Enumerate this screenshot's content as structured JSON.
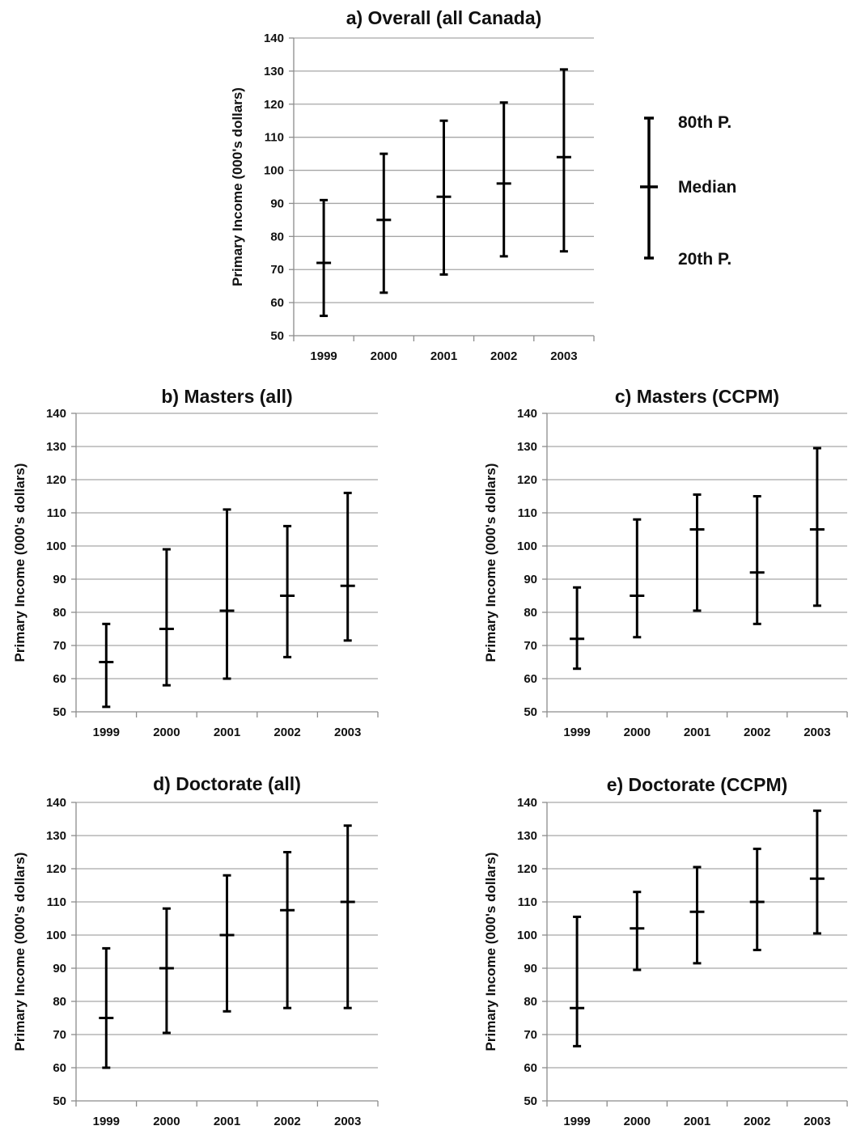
{
  "chart_data": [
    {
      "type": "error-bar",
      "title": "a) Overall (all Canada)",
      "ylabel": "Primary Income (000's dollars)",
      "ylim": [
        50,
        140
      ],
      "yticks": [
        "50",
        "60",
        "70",
        "80",
        "90",
        "100",
        "110",
        "120",
        "130",
        "140"
      ],
      "categories": [
        "1999",
        "2000",
        "2001",
        "2002",
        "2003"
      ],
      "p20": [
        56,
        63,
        68.5,
        74,
        75.5
      ],
      "median": [
        72,
        85,
        92,
        96,
        104
      ],
      "p80": [
        91,
        105,
        115,
        120.5,
        130.5
      ],
      "grid": true
    },
    {
      "type": "error-bar",
      "title": "b) Masters (all)",
      "ylabel": "Primary Income (000's dollars)",
      "ylim": [
        50,
        140
      ],
      "yticks": [
        "50",
        "60",
        "70",
        "80",
        "90",
        "100",
        "110",
        "120",
        "130",
        "140"
      ],
      "categories": [
        "1999",
        "2000",
        "2001",
        "2002",
        "2003"
      ],
      "p20": [
        51.5,
        58,
        60,
        66.5,
        71.5
      ],
      "median": [
        65,
        75,
        80.5,
        85,
        88
      ],
      "p80": [
        76.5,
        99,
        111,
        106,
        116
      ],
      "grid": true
    },
    {
      "type": "error-bar",
      "title": "c) Masters (CCPM)",
      "ylabel": "Primary Income (000's dollars)",
      "ylim": [
        50,
        140
      ],
      "yticks": [
        "50",
        "60",
        "70",
        "80",
        "90",
        "100",
        "110",
        "120",
        "130",
        "140"
      ],
      "categories": [
        "1999",
        "2000",
        "2001",
        "2002",
        "2003"
      ],
      "p20": [
        63,
        72.5,
        80.5,
        76.5,
        82
      ],
      "median": [
        72,
        85,
        105,
        92,
        105
      ],
      "p80": [
        87.5,
        108,
        115.5,
        115,
        129.5
      ],
      "grid": true
    },
    {
      "type": "error-bar",
      "title": "d) Doctorate (all)",
      "ylabel": "Primary Income (000's dollars)",
      "ylim": [
        50,
        140
      ],
      "yticks": [
        "50",
        "60",
        "70",
        "80",
        "90",
        "100",
        "110",
        "120",
        "130",
        "140"
      ],
      "categories": [
        "1999",
        "2000",
        "2001",
        "2002",
        "2003"
      ],
      "p20": [
        60,
        70.5,
        77,
        78,
        78
      ],
      "median": [
        75,
        90,
        100,
        107.5,
        110
      ],
      "p80": [
        96,
        108,
        118,
        125,
        133
      ],
      "grid": true
    },
    {
      "type": "error-bar",
      "title": "e) Doctorate (CCPM)",
      "ylabel": "Primary Income (000's dollars)",
      "ylim": [
        50,
        140
      ],
      "yticks": [
        "50",
        "60",
        "70",
        "80",
        "90",
        "100",
        "110",
        "120",
        "130",
        "140"
      ],
      "categories": [
        "1999",
        "2000",
        "2001",
        "2002",
        "2003"
      ],
      "p20": [
        66.5,
        89.5,
        91.5,
        95.5,
        100.5
      ],
      "median": [
        78,
        102,
        107,
        110,
        117
      ],
      "p80": [
        105.5,
        113,
        120.5,
        126,
        137.5
      ],
      "grid": true
    }
  ],
  "legend": {
    "top": "80th P.",
    "middle": "Median",
    "bottom": "20th P."
  },
  "colors": {
    "grid": "#a6a6a6",
    "axis": "#8c8c8c",
    "bar": "#000000"
  }
}
